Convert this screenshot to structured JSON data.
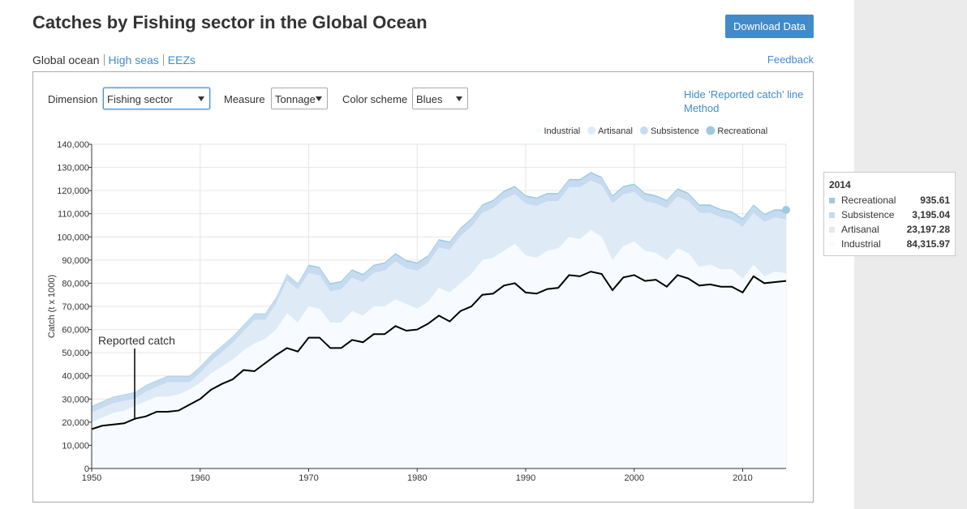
{
  "header": {
    "title": "Catches by Fishing sector in the Global Ocean",
    "button": "Download Data"
  },
  "nav": {
    "items": [
      "Global ocean",
      "High seas",
      "EEZs"
    ],
    "feedback": "Feedback"
  },
  "controls": [
    {
      "label": "Dimension",
      "value": "Fishing sector"
    },
    {
      "label": "Measure",
      "value": "Tonnage"
    },
    {
      "label": "Color scheme",
      "value": "Blues"
    }
  ],
  "links": [
    "Hide 'Reported catch' line",
    "Method"
  ],
  "chart_data": {
    "type": "area",
    "ylabel": "Catch (t x 1000)",
    "x": [
      1950,
      1951,
      1952,
      1953,
      1954,
      1955,
      1956,
      1957,
      1958,
      1959,
      1960,
      1961,
      1962,
      1963,
      1964,
      1965,
      1966,
      1967,
      1968,
      1969,
      1970,
      1971,
      1972,
      1973,
      1974,
      1975,
      1976,
      1977,
      1978,
      1979,
      1980,
      1981,
      1982,
      1983,
      1984,
      1985,
      1986,
      1987,
      1988,
      1989,
      1990,
      1991,
      1992,
      1993,
      1994,
      1995,
      1996,
      1997,
      1998,
      1999,
      2000,
      2001,
      2002,
      2003,
      2004,
      2005,
      2006,
      2007,
      2008,
      2009,
      2010,
      2011,
      2012,
      2013,
      2014
    ],
    "xlim": [
      1950,
      2014
    ],
    "xticks": [
      1950,
      1960,
      1970,
      1980,
      1990,
      2000,
      2010
    ],
    "ylim": [
      0,
      140000
    ],
    "yticks": [
      0,
      {
        "value": 10000,
        "label": "10,000"
      },
      {
        "value": 20000,
        "label": "20,000"
      },
      {
        "value": 30000,
        "label": "30,000"
      },
      {
        "value": 40000,
        "label": "40,000"
      },
      {
        "value": 50000,
        "label": "50,000"
      },
      {
        "value": 60000,
        "label": "60,000"
      },
      {
        "value": 70000,
        "label": "70,000"
      },
      {
        "value": 80000,
        "label": "80,000"
      },
      {
        "value": 90000,
        "label": "90,000"
      },
      {
        "value": 100000,
        "label": "100,000"
      },
      {
        "value": 110000,
        "label": "110,000"
      },
      {
        "value": 120000,
        "label": "120,000"
      },
      {
        "value": 130000,
        "label": "130,000"
      },
      {
        "value": 140000,
        "label": "140,000"
      }
    ],
    "grid": true,
    "stacked": true,
    "legend": "top-right",
    "series": [
      {
        "name": "Industrial",
        "color": "#f7fbff",
        "values": [
          20000,
          22000,
          24000,
          25000,
          27000,
          29000,
          31000,
          31000,
          32000,
          34000,
          37000,
          41000,
          44000,
          47000,
          51000,
          54000,
          56000,
          60000,
          67000,
          63000,
          70000,
          69000,
          63000,
          63000,
          68000,
          66000,
          70000,
          70000,
          73000,
          71000,
          69000,
          72000,
          78000,
          76000,
          80000,
          84000,
          90000,
          91000,
          94000,
          97000,
          92000,
          91000,
          94000,
          95000,
          100000,
          99000,
          103000,
          100000,
          90000,
          96000,
          98000,
          94000,
          93000,
          90000,
          95000,
          93000,
          87000,
          88000,
          86000,
          86000,
          82000,
          88000,
          83000,
          85000,
          84315.97
        ]
      },
      {
        "name": "Artisanal",
        "color": "#deebf7",
        "values": [
          4200,
          4200,
          4200,
          4200,
          3200,
          4200,
          4200,
          6200,
          5200,
          3200,
          4200,
          5200,
          6200,
          7200,
          8200,
          10200,
          8200,
          11200,
          14200,
          14200,
          14400,
          14400,
          13400,
          14400,
          14400,
          14400,
          14400,
          15400,
          16400,
          15400,
          16400,
          16400,
          17400,
          18400,
          20400,
          20400,
          20400,
          21400,
          22400,
          21400,
          22400,
          22400,
          21400,
          20400,
          21400,
          22400,
          21400,
          22400,
          24400,
          22400,
          21400,
          21400,
          21400,
          22400,
          22400,
          22400,
          23400,
          22400,
          22400,
          21400,
          22400,
          22400,
          23400,
          23400,
          23197.28
        ]
      },
      {
        "name": "Subsistence",
        "color": "#c6dbef",
        "values": [
          2500,
          2500,
          2500,
          2500,
          2500,
          2500,
          2500,
          2500,
          2500,
          2500,
          2500,
          2500,
          2500,
          2500,
          2500,
          2500,
          2500,
          2500,
          2500,
          2500,
          3000,
          3000,
          3000,
          3000,
          3000,
          3000,
          3000,
          3000,
          3000,
          3000,
          3000,
          3000,
          3000,
          3000,
          3000,
          3000,
          3000,
          3000,
          3000,
          3000,
          3000,
          3000,
          3000,
          3000,
          3000,
          3000,
          3000,
          3000,
          3000,
          3000,
          3000,
          3000,
          3000,
          3000,
          3000,
          3000,
          3000,
          3000,
          3000,
          3000,
          3000,
          3000,
          3000,
          3000,
          3195.04
        ]
      },
      {
        "name": "Recreational",
        "color": "#9ecae1",
        "values": [
          300,
          300,
          300,
          300,
          300,
          300,
          300,
          300,
          300,
          300,
          300,
          300,
          300,
          300,
          300,
          300,
          300,
          300,
          300,
          300,
          600,
          600,
          600,
          600,
          600,
          600,
          600,
          600,
          600,
          600,
          600,
          600,
          600,
          600,
          600,
          600,
          600,
          600,
          600,
          600,
          600,
          600,
          600,
          600,
          600,
          600,
          600,
          600,
          600,
          600,
          600,
          600,
          600,
          600,
          600,
          600,
          600,
          600,
          600,
          600,
          600,
          600,
          600,
          600,
          935.61
        ]
      }
    ],
    "reported_catch": {
      "name": "Reported catch",
      "color": "#000000",
      "values": [
        17000,
        18500,
        19000,
        19500,
        21500,
        22500,
        24500,
        24500,
        25000,
        27500,
        30000,
        34000,
        36500,
        38500,
        42500,
        42000,
        45500,
        49000,
        52000,
        50500,
        56500,
        56500,
        52000,
        52000,
        55500,
        54500,
        58000,
        58000,
        61500,
        59500,
        60000,
        62500,
        66000,
        63500,
        68000,
        70000,
        75000,
        75500,
        79000,
        80000,
        76000,
        75500,
        77500,
        78000,
        83500,
        83000,
        85000,
        84000,
        77000,
        82500,
        83500,
        81000,
        81500,
        78500,
        83500,
        82000,
        79000,
        79500,
        78500,
        78500,
        76000,
        83000,
        80000,
        80500,
        81000
      ]
    }
  },
  "tooltip": {
    "title": "2014",
    "rows": [
      {
        "name": "Recreational",
        "value": "935.61",
        "color": "#9ecae1"
      },
      {
        "name": "Subsistence",
        "value": "3,195.04",
        "color": "#c6dbef"
      },
      {
        "name": "Artisanal",
        "value": "23,197.28",
        "color": "#deebf7"
      },
      {
        "name": "Industrial",
        "value": "84,315.97",
        "color": "#f7fbff"
      }
    ]
  }
}
